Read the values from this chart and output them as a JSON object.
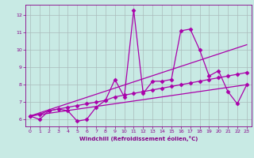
{
  "title": "",
  "xlabel": "Windchill (Refroidissement éolien,°C)",
  "ylabel": "",
  "bg_color": "#c8eae4",
  "grid_color": "#aabbbb",
  "line_color": "#aa00aa",
  "xlim": [
    -0.5,
    23.5
  ],
  "ylim": [
    5.6,
    12.6
  ],
  "xticks": [
    0,
    1,
    2,
    3,
    4,
    5,
    6,
    7,
    8,
    9,
    10,
    11,
    12,
    13,
    14,
    15,
    16,
    17,
    18,
    19,
    20,
    21,
    22,
    23
  ],
  "yticks": [
    6,
    7,
    8,
    9,
    10,
    11,
    12
  ],
  "series1_x": [
    0,
    1,
    2,
    3,
    4,
    5,
    6,
    7,
    8,
    9,
    10,
    11,
    12,
    13,
    14,
    15,
    16,
    17,
    18,
    19,
    20,
    21,
    22,
    23
  ],
  "series1_y": [
    6.2,
    6.0,
    6.5,
    6.6,
    6.5,
    5.9,
    6.0,
    6.7,
    7.1,
    8.3,
    7.3,
    12.3,
    7.5,
    8.2,
    8.2,
    8.3,
    11.1,
    11.2,
    10.0,
    8.5,
    8.8,
    7.6,
    6.9,
    8.0
  ],
  "series2_x": [
    0,
    1,
    2,
    3,
    4,
    5,
    6,
    7,
    8,
    9,
    10,
    11,
    12,
    13,
    14,
    15,
    16,
    17,
    18,
    19,
    20,
    21,
    22,
    23
  ],
  "series2_y": [
    6.2,
    6.3,
    6.5,
    6.6,
    6.7,
    6.8,
    6.9,
    7.0,
    7.1,
    7.3,
    7.4,
    7.5,
    7.6,
    7.7,
    7.8,
    7.9,
    8.0,
    8.1,
    8.2,
    8.3,
    8.4,
    8.5,
    8.6,
    8.7
  ],
  "series3_x": [
    0,
    23
  ],
  "series3_y": [
    6.2,
    10.3
  ],
  "series4_x": [
    0,
    23
  ],
  "series4_y": [
    6.2,
    8.0
  ],
  "marker": "D",
  "markersize": 2.5,
  "linewidth": 0.9
}
